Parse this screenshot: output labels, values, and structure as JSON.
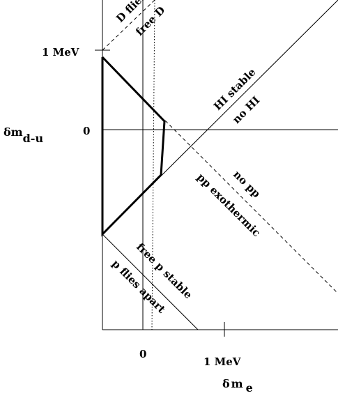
{
  "axes": {
    "y_symbol": "δ",
    "y_var": "m",
    "y_sub": "d-u",
    "x_symbol": "δ",
    "x_var": "m",
    "x_sub": "e",
    "y_tick_zero": "0",
    "y_tick_mev": "1 MeV",
    "x_tick_zero": "0",
    "x_tick_mev": "1 MeV"
  },
  "regions": {
    "d_flies": "D flies",
    "free_d": "free D",
    "hi_stable": "HI stable",
    "no_hi": "no HI",
    "no_pp": "no pp",
    "pp_exothermic": "pp exothermic",
    "free_p_stable": "free p stable",
    "p_flies_apart": "p flies apart"
  }
}
